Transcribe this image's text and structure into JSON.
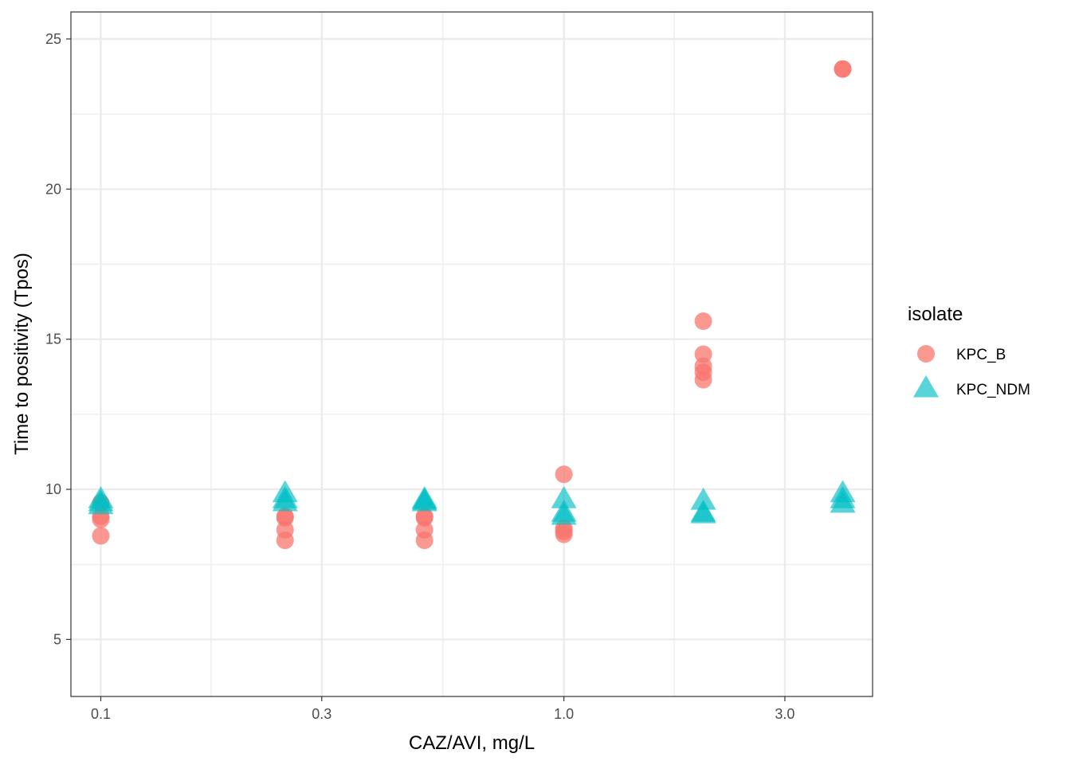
{
  "chart_data": {
    "type": "scatter",
    "title": "",
    "xlabel": "CAZ/AVI, mg/L",
    "ylabel": "Time to positivity (Tpos)",
    "x_scale": "log10",
    "xlim": [
      0.0862,
      4.64
    ],
    "ylim": [
      3.1,
      25.9
    ],
    "x_ticks": [
      {
        "value": 0.1,
        "label": "0.1"
      },
      {
        "value": 0.3,
        "label": "0.3"
      },
      {
        "value": 1.0,
        "label": "1.0"
      },
      {
        "value": 3.0,
        "label": "3.0"
      }
    ],
    "x_minor_ticks": [
      0.173,
      0.548,
      1.73
    ],
    "y_ticks": [
      {
        "value": 5,
        "label": "5"
      },
      {
        "value": 10,
        "label": "10"
      },
      {
        "value": 15,
        "label": "15"
      },
      {
        "value": 20,
        "label": "20"
      },
      {
        "value": 25,
        "label": "25"
      }
    ],
    "y_minor_ticks": [
      7.5,
      12.5,
      17.5,
      22.5
    ],
    "grid": true,
    "legend": {
      "title": "isolate",
      "position": "right"
    },
    "series": [
      {
        "name": "KPC_B",
        "marker": "circle",
        "color": "#F8766D",
        "points": [
          {
            "x": 0.1,
            "y": 9.55
          },
          {
            "x": 0.1,
            "y": 9.1
          },
          {
            "x": 0.1,
            "y": 9.0
          },
          {
            "x": 0.1,
            "y": 8.45
          },
          {
            "x": 0.25,
            "y": 9.1
          },
          {
            "x": 0.25,
            "y": 9.05
          },
          {
            "x": 0.25,
            "y": 8.65
          },
          {
            "x": 0.25,
            "y": 8.3
          },
          {
            "x": 0.5,
            "y": 9.1
          },
          {
            "x": 0.5,
            "y": 9.05
          },
          {
            "x": 0.5,
            "y": 8.65
          },
          {
            "x": 0.5,
            "y": 8.3
          },
          {
            "x": 1.0,
            "y": 10.5
          },
          {
            "x": 1.0,
            "y": 8.7
          },
          {
            "x": 1.0,
            "y": 8.6
          },
          {
            "x": 1.0,
            "y": 8.5
          },
          {
            "x": 2.0,
            "y": 15.6
          },
          {
            "x": 2.0,
            "y": 14.5
          },
          {
            "x": 2.0,
            "y": 14.1
          },
          {
            "x": 2.0,
            "y": 13.9
          },
          {
            "x": 2.0,
            "y": 13.65
          },
          {
            "x": 4.0,
            "y": 24.0
          },
          {
            "x": 4.0,
            "y": 24.0
          }
        ]
      },
      {
        "name": "KPC_NDM",
        "marker": "triangle",
        "color": "#00BFC4",
        "points": [
          {
            "x": 0.1,
            "y": 9.65
          },
          {
            "x": 0.1,
            "y": 9.55
          },
          {
            "x": 0.1,
            "y": 9.45
          },
          {
            "x": 0.25,
            "y": 9.85
          },
          {
            "x": 0.25,
            "y": 9.65
          },
          {
            "x": 0.25,
            "y": 9.55
          },
          {
            "x": 0.5,
            "y": 9.65
          },
          {
            "x": 0.5,
            "y": 9.6
          },
          {
            "x": 0.5,
            "y": 9.55
          },
          {
            "x": 1.0,
            "y": 9.65
          },
          {
            "x": 1.0,
            "y": 9.2
          },
          {
            "x": 1.0,
            "y": 9.1
          },
          {
            "x": 2.0,
            "y": 9.6
          },
          {
            "x": 2.0,
            "y": 9.2
          },
          {
            "x": 2.0,
            "y": 9.15
          },
          {
            "x": 4.0,
            "y": 9.85
          },
          {
            "x": 4.0,
            "y": 9.65
          },
          {
            "x": 4.0,
            "y": 9.5
          }
        ]
      }
    ]
  }
}
